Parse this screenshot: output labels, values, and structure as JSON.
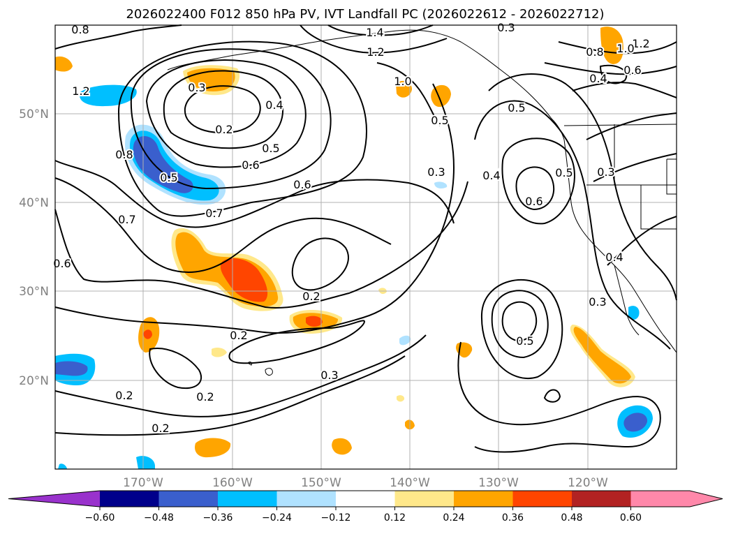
{
  "title": "2026022400 F012 850 hPa PV, IVT Landfall PC (2026022612 - 2026022712)",
  "map": {
    "lat_labels": [
      "50°N",
      "40°N",
      "30°N",
      "20°N"
    ],
    "lon_labels": [
      "170°W",
      "160°W",
      "150°W",
      "140°W",
      "130°W",
      "120°W"
    ],
    "contour_labels": [
      "0.8",
      "1.4",
      "1.2",
      "1.2",
      "1.0",
      "0.8",
      "1.0",
      "1.2",
      "0.6",
      "0.4",
      "0.3",
      "0.4",
      "0.2",
      "0.5",
      "0.5",
      "0.6",
      "0.6",
      "0.8",
      "0.5",
      "0.3",
      "0.4",
      "0.3",
      "0.5",
      "0.6",
      "0.7",
      "0.7",
      "0.6",
      "0.2",
      "0.2",
      "0.2",
      "0.2",
      "0.3",
      "0.2",
      "0.3",
      "0.5",
      "0.4",
      "0.3",
      "0.5"
    ]
  },
  "colorbar": {
    "ticks": [
      "−0.60",
      "−0.48",
      "−0.36",
      "−0.24",
      "−0.12",
      "0.12",
      "0.24",
      "0.36",
      "0.48",
      "0.60"
    ],
    "colors": [
      "#9932cc",
      "#00008b",
      "#3a5fcd",
      "#00bfff",
      "#b0e2ff",
      "#ffffff",
      "#ffe88a",
      "#ffa500",
      "#ff4500",
      "#b22222",
      "#ff88aa",
      "#ff88aa"
    ]
  }
}
